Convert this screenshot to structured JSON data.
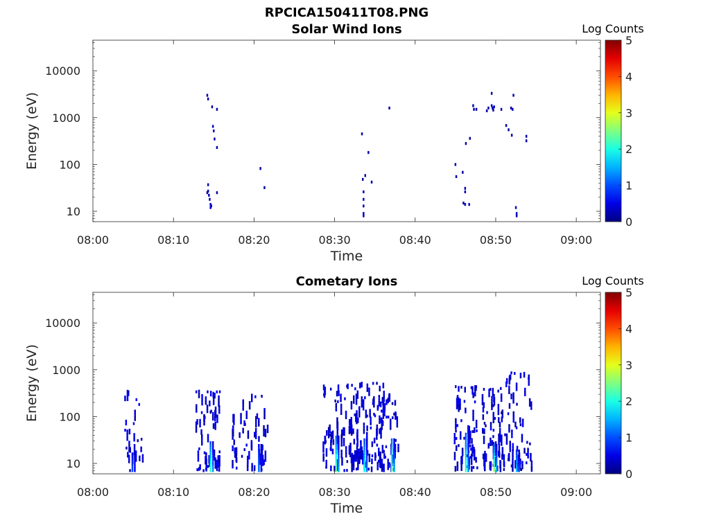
{
  "figure_title": "RPCICA150411T08.PNG",
  "colorbar_label": "Log Counts",
  "colorbar_ticks": [
    "0",
    "1",
    "2",
    "3",
    "4",
    "5"
  ],
  "chart_data": [
    {
      "type": "heatmap",
      "title": "Solar Wind Ions",
      "xlabel": "Time",
      "ylabel": "Energy (eV)",
      "x_ticks": [
        "08:00",
        "08:10",
        "08:20",
        "08:30",
        "08:40",
        "08:50",
        "09:00"
      ],
      "y_ticks": [
        "10",
        "100",
        "1000",
        "10000"
      ],
      "x_range_min": [
        0,
        63
      ],
      "y_range_eV": [
        6,
        45000
      ],
      "y_scale": "log",
      "z_range": [
        0,
        5
      ],
      "colormap": "jet",
      "cells": [
        [
          14.2,
          25,
          0.2
        ],
        [
          14.3,
          27,
          0.2
        ],
        [
          14.4,
          22,
          0.3
        ],
        [
          14.5,
          18,
          0.3
        ],
        [
          14.6,
          14,
          0.35
        ],
        [
          14.6,
          12,
          0.4
        ],
        [
          14.7,
          13,
          0.3
        ],
        [
          14.3,
          37,
          0.2
        ],
        [
          15.4,
          25,
          0.2
        ],
        [
          14.2,
          3000,
          0.2
        ],
        [
          14.3,
          2500,
          0.2
        ],
        [
          14.8,
          1700,
          0.2
        ],
        [
          15.4,
          1500,
          0.2
        ],
        [
          14.9,
          650,
          0.3
        ],
        [
          15.0,
          520,
          0.3
        ],
        [
          15.1,
          350,
          0.2
        ],
        [
          15.4,
          230,
          0.2
        ],
        [
          20.8,
          82,
          0.2
        ],
        [
          21.3,
          32,
          0.2
        ],
        [
          33.4,
          450,
          0.2
        ],
        [
          33.5,
          48,
          0.2
        ],
        [
          33.6,
          26,
          0.3
        ],
        [
          33.6,
          18,
          0.3
        ],
        [
          33.6,
          13,
          0.3
        ],
        [
          33.6,
          9,
          0.3
        ],
        [
          33.6,
          8,
          0.3
        ],
        [
          33.8,
          58,
          0.2
        ],
        [
          34.2,
          180,
          0.2
        ],
        [
          34.6,
          42,
          0.2
        ],
        [
          36.8,
          1600,
          0.2
        ],
        [
          45.0,
          100,
          0.2
        ],
        [
          45.1,
          55,
          0.2
        ],
        [
          45.9,
          68,
          0.15
        ],
        [
          46.2,
          31,
          0.3
        ],
        [
          46.2,
          26,
          0.3
        ],
        [
          46.0,
          15,
          0.3
        ],
        [
          46.2,
          14,
          0.3
        ],
        [
          46.7,
          14,
          0.3
        ],
        [
          46.3,
          280,
          0.2
        ],
        [
          46.8,
          360,
          0.2
        ],
        [
          47.2,
          1800,
          0.2
        ],
        [
          47.3,
          1500,
          0.2
        ],
        [
          47.6,
          1500,
          0.15
        ],
        [
          48.9,
          1400,
          0.2
        ],
        [
          49.1,
          1600,
          0.2
        ],
        [
          49.5,
          3300,
          0.2
        ],
        [
          49.5,
          1800,
          0.3
        ],
        [
          49.6,
          1600,
          0.3
        ],
        [
          49.8,
          1700,
          0.3
        ],
        [
          49.7,
          1450,
          0.2
        ],
        [
          50.7,
          1500,
          0.2
        ],
        [
          51.3,
          680,
          0.2
        ],
        [
          51.6,
          550,
          0.2
        ],
        [
          51.9,
          1600,
          0.2
        ],
        [
          52.1,
          1500,
          0.3
        ],
        [
          52.2,
          3000,
          0.2
        ],
        [
          52.0,
          420,
          0.2
        ],
        [
          52.5,
          12,
          0.3
        ],
        [
          52.6,
          9,
          0.3
        ],
        [
          52.6,
          8,
          0.3
        ],
        [
          53.8,
          400,
          0.2
        ],
        [
          53.8,
          320,
          0.2
        ]
      ]
    },
    {
      "type": "heatmap",
      "title": "Cometary Ions",
      "xlabel": "Time",
      "ylabel": "Energy (eV)",
      "x_ticks": [
        "08:00",
        "08:10",
        "08:20",
        "08:30",
        "08:40",
        "08:50",
        "09:00"
      ],
      "y_ticks": [
        "10",
        "100",
        "1000",
        "10000"
      ],
      "x_range_min": [
        0,
        63
      ],
      "y_range_eV": [
        6,
        45000
      ],
      "y_scale": "log",
      "z_range": [
        0,
        5
      ],
      "colormap": "jet",
      "bursts": [
        {
          "t0": 4.0,
          "t1": 6.2,
          "emin": 7,
          "emax": 350,
          "peak": 0.6,
          "n": 26,
          "core_t": 4.9,
          "core_top": 18
        },
        {
          "t0": 12.8,
          "t1": 15.8,
          "emin": 7,
          "emax": 350,
          "peak": 1.8,
          "n": 60,
          "core_t": 14.6,
          "core_top": 30
        },
        {
          "t0": 17.3,
          "t1": 21.7,
          "emin": 7,
          "emax": 300,
          "peak": 0.8,
          "n": 55,
          "core_t": 20.6,
          "core_top": 25
        },
        {
          "t0": 28.6,
          "t1": 33.0,
          "emin": 7,
          "emax": 500,
          "peak": 2.0,
          "n": 90,
          "core_t": 30.2,
          "core_top": 40
        },
        {
          "t0": 32.3,
          "t1": 36.2,
          "emin": 7,
          "emax": 550,
          "peak": 1.6,
          "n": 85,
          "core_t": 33.7,
          "core_top": 35
        },
        {
          "t0": 35.5,
          "t1": 38.0,
          "emin": 7,
          "emax": 300,
          "peak": 2.0,
          "n": 50,
          "core_t": 37.1,
          "core_top": 35
        },
        {
          "t0": 44.8,
          "t1": 47.8,
          "emin": 7,
          "emax": 450,
          "peak": 1.7,
          "n": 70,
          "core_t": 46.3,
          "core_top": 45
        },
        {
          "t0": 48.3,
          "t1": 50.8,
          "emin": 7,
          "emax": 400,
          "peak": 2.2,
          "n": 60,
          "core_t": 49.8,
          "core_top": 25
        },
        {
          "t0": 50.6,
          "t1": 54.5,
          "emin": 7,
          "emax": 900,
          "peak": 1.2,
          "n": 70,
          "core_t": 52.6,
          "core_top": 20
        }
      ]
    }
  ]
}
